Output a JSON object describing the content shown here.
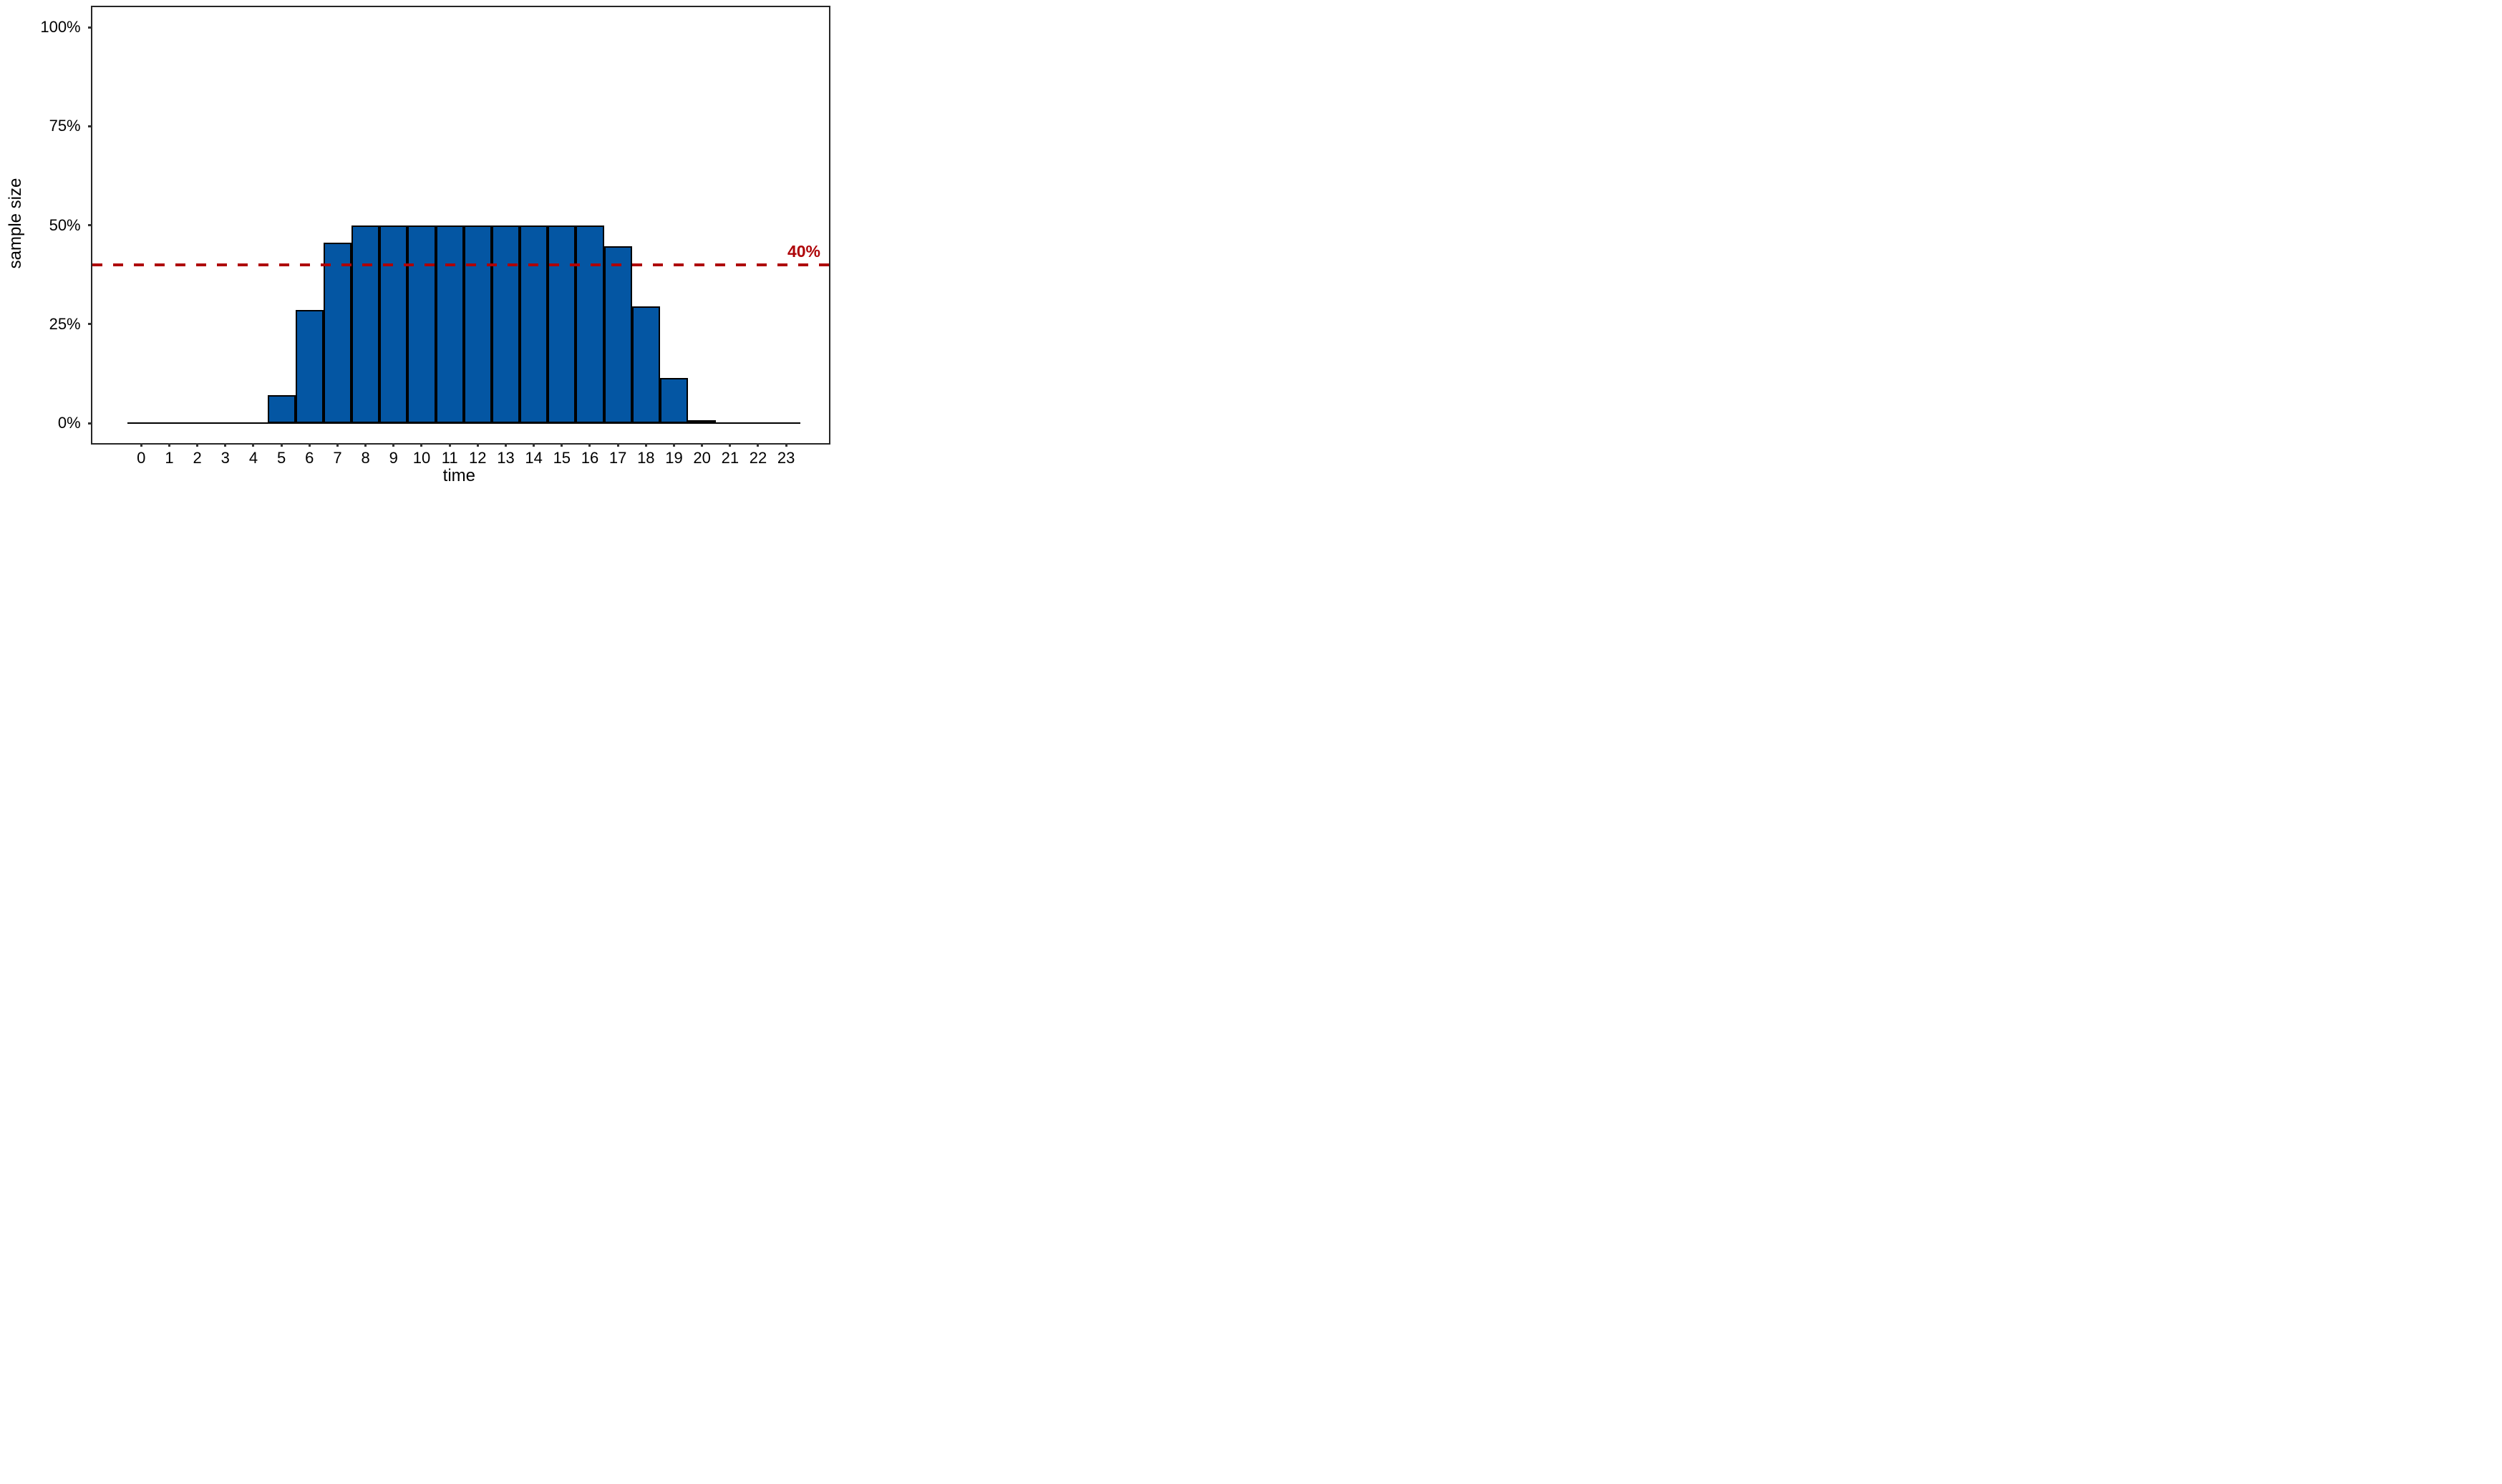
{
  "chart_data": {
    "type": "bar",
    "title": "",
    "xlabel": "time",
    "ylabel": "sample size",
    "categories": [
      0,
      1,
      2,
      3,
      4,
      5,
      6,
      7,
      8,
      9,
      10,
      11,
      12,
      13,
      14,
      15,
      16,
      17,
      18,
      19,
      20,
      21,
      22,
      23
    ],
    "values": [
      0,
      0,
      0,
      0,
      0,
      7,
      28.6,
      45.5,
      50,
      50,
      50,
      50,
      50,
      50,
      50,
      50,
      50,
      44.6,
      29.4,
      11.4,
      0.5,
      0,
      0,
      0
    ],
    "bar_width": 1,
    "xlim": [
      -1.753,
      24.528
    ],
    "ylim": [
      -5,
      105
    ],
    "data_x_range": [
      -0.5,
      23.5
    ],
    "grid": "off",
    "legend": "none",
    "y_ticks": [
      {
        "value": 0,
        "label": "0%"
      },
      {
        "value": 25,
        "label": "25%"
      },
      {
        "value": 50,
        "label": "50%"
      },
      {
        "value": 75,
        "label": "75%"
      },
      {
        "value": 100,
        "label": "100%"
      }
    ],
    "reference_line": {
      "value": 40,
      "label": "40%",
      "style": "dashed",
      "color": "#AE0408"
    },
    "colors": {
      "bar_fill": "#0456A3",
      "bar_stroke": "#000000",
      "panel_border": "#262626",
      "tick": "#333333",
      "text": "#000000",
      "background": "#ffffff"
    }
  }
}
